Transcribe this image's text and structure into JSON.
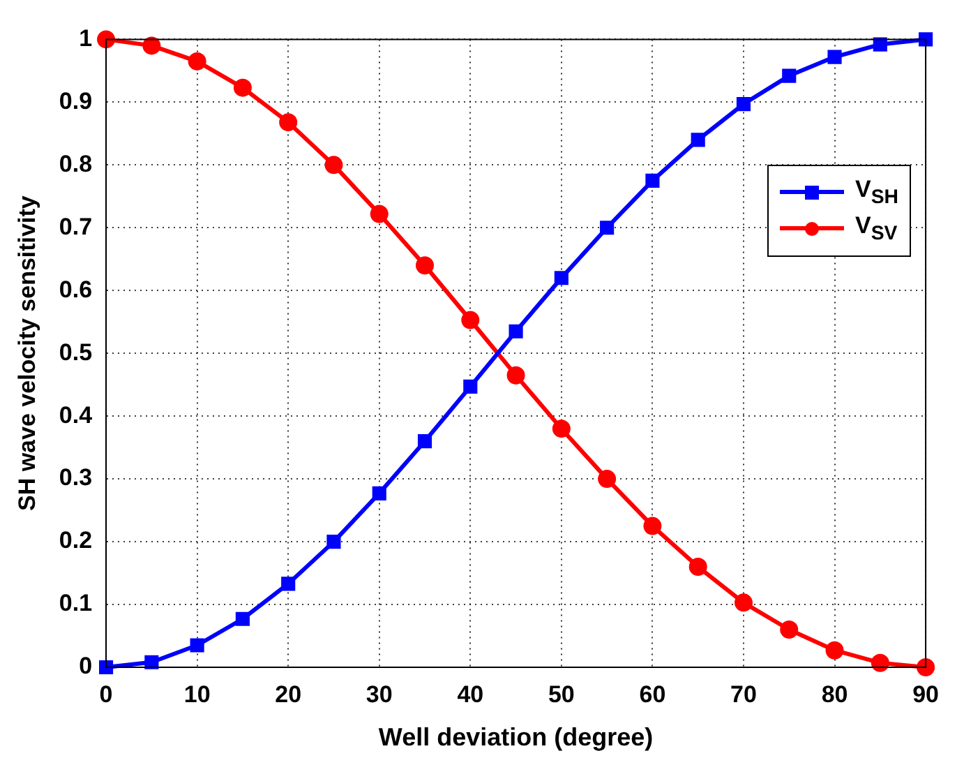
{
  "chart_data": {
    "type": "line",
    "xlabel": "Well deviation (degree)",
    "ylabel": "SH wave velocity sensitivity",
    "x": [
      0,
      5,
      10,
      15,
      20,
      25,
      30,
      35,
      40,
      45,
      50,
      55,
      60,
      65,
      70,
      75,
      80,
      85,
      90
    ],
    "series": [
      {
        "name": "V$_{SH}$",
        "color": "#0000ff",
        "marker": "square",
        "values": [
          0,
          0.008,
          0.035,
          0.077,
          0.133,
          0.2,
          0.277,
          0.36,
          0.447,
          0.535,
          0.62,
          0.7,
          0.775,
          0.84,
          0.897,
          0.942,
          0.972,
          0.992,
          1
        ]
      },
      {
        "name": "V$_{SV}$",
        "color": "#ff0000",
        "marker": "circle",
        "values": [
          1,
          0.99,
          0.965,
          0.923,
          0.868,
          0.8,
          0.722,
          0.64,
          0.553,
          0.465,
          0.38,
          0.3,
          0.225,
          0.16,
          0.103,
          0.06,
          0.027,
          0.007,
          0
        ]
      }
    ],
    "xlim": [
      0,
      90
    ],
    "xticks": [
      0,
      10,
      20,
      30,
      40,
      50,
      60,
      70,
      80,
      90
    ],
    "ylim": [
      0,
      1
    ],
    "yticks": [
      0,
      0.1,
      0.2,
      0.3,
      0.4,
      0.5,
      0.6,
      0.7,
      0.8,
      0.9,
      1
    ],
    "grid": true,
    "legend": "right",
    "line_style": "solid"
  }
}
